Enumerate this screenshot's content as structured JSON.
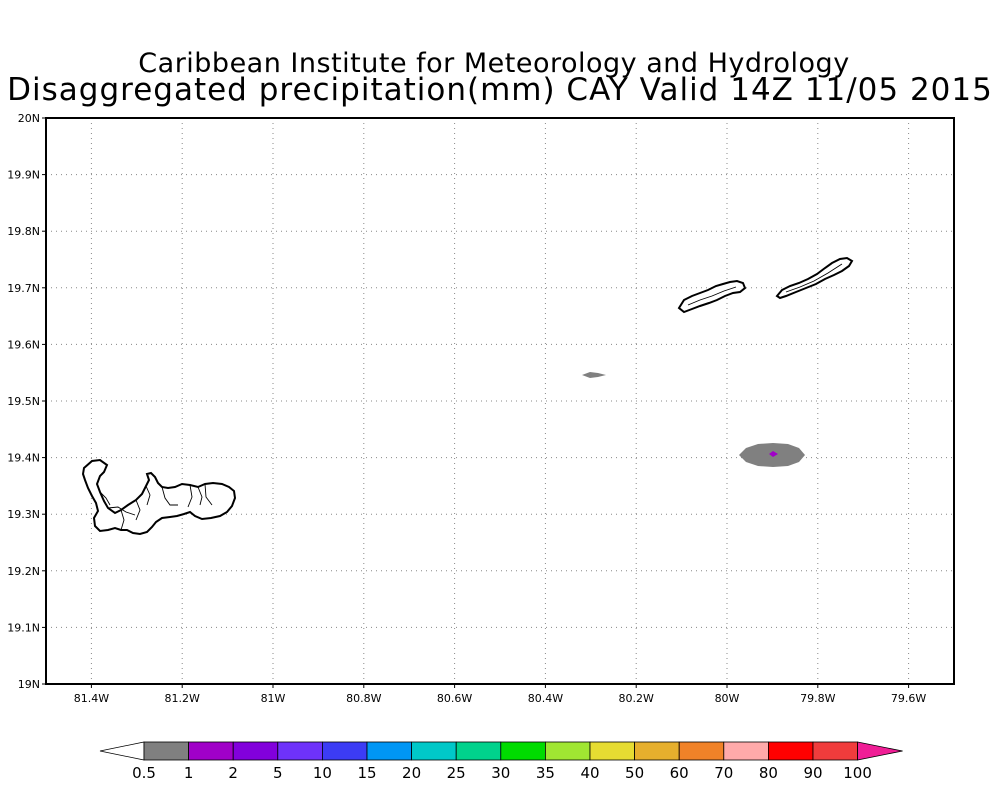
{
  "title": {
    "line1": "Caribbean Institute for Meteorology and Hydrology",
    "line2": "Disaggregated precipitation(mm) CAY Valid 14Z 11/05 2015"
  },
  "axes": {
    "lat_labels": [
      "20N",
      "19.9N",
      "19.8N",
      "19.7N",
      "19.6N",
      "19.5N",
      "19.4N",
      "19.3N",
      "19.2N",
      "19.1N",
      "19N"
    ],
    "lat_values": [
      20.0,
      19.9,
      19.8,
      19.7,
      19.6,
      19.5,
      19.4,
      19.3,
      19.2,
      19.1,
      19.0
    ],
    "lon_labels": [
      "81.4W",
      "81.2W",
      "81W",
      "80.8W",
      "80.6W",
      "80.4W",
      "80.2W",
      "80W",
      "79.8W",
      "79.6W"
    ],
    "lon_values": [
      -81.4,
      -81.2,
      -81.0,
      -80.8,
      -80.6,
      -80.4,
      -80.2,
      -80.0,
      -79.8,
      -79.6
    ],
    "lat_range": [
      19.0,
      20.0
    ],
    "lon_range": [
      -81.5,
      -79.5
    ],
    "grid": "dotted"
  },
  "islands": [
    {
      "name_shown": false,
      "id": "grand-cayman"
    },
    {
      "name_shown": false,
      "id": "little-cayman"
    },
    {
      "name_shown": false,
      "id": "cayman-brac"
    }
  ],
  "precip_features": [
    {
      "id": "cell-small",
      "center": [
        -80.29,
        19.548
      ],
      "category": "0.5-1"
    },
    {
      "id": "cell-main",
      "center": [
        -79.89,
        19.403
      ],
      "category": "0.5-1",
      "core_category": "1-2"
    }
  ],
  "colorbar": {
    "labels": [
      "0.5",
      "1",
      "2",
      "5",
      "10",
      "15",
      "20",
      "25",
      "30",
      "35",
      "40",
      "50",
      "60",
      "70",
      "80",
      "90",
      "100"
    ],
    "colors": [
      "#ffffff",
      "#808080",
      "#a000c8",
      "#8200dc",
      "#6e32fa",
      "#3c3cf5",
      "#0096f5",
      "#00c8c8",
      "#00d28c",
      "#00dc00",
      "#a0e632",
      "#e6dc32",
      "#e6af2d",
      "#f08228",
      "#ffaaaa",
      "#ff0000",
      "#f03c3c",
      "#f01e96"
    ]
  }
}
